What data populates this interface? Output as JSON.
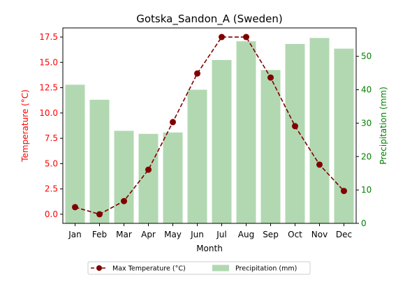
{
  "chart_data": {
    "type": "bar+line",
    "title": "Gotska_Sandon_A (Sweden)",
    "xlabel": "Month",
    "categories": [
      "Jan",
      "Feb",
      "Mar",
      "Apr",
      "May",
      "Jun",
      "Jul",
      "Aug",
      "Sep",
      "Oct",
      "Nov",
      "Dec"
    ],
    "left_axis": {
      "label": "Temperature (°C)",
      "color": "#ff0000",
      "ylim": [
        -0.9,
        18.4
      ],
      "ticks": [
        0.0,
        2.5,
        5.0,
        7.5,
        10.0,
        12.5,
        15.0,
        17.5
      ],
      "tick_labels": [
        "0.0",
        "2.5",
        "5.0",
        "7.5",
        "10.0",
        "12.5",
        "15.0",
        "17.5"
      ]
    },
    "right_axis": {
      "label": "Precipitation (mm)",
      "color": "#008000",
      "ylim": [
        0,
        58.5
      ],
      "ticks": [
        0,
        10,
        20,
        30,
        40,
        50
      ],
      "tick_labels": [
        "0",
        "10",
        "20",
        "30",
        "40",
        "50"
      ]
    },
    "series": [
      {
        "name": "Max Temperature (°C)",
        "kind": "line",
        "axis": "left",
        "color": "#800000",
        "line_style": "dashed",
        "marker": "circle",
        "values": [
          0.7,
          0.0,
          1.3,
          4.4,
          9.1,
          13.9,
          17.5,
          17.5,
          13.5,
          8.7,
          4.9,
          2.3
        ]
      },
      {
        "name": "Precipitation (mm)",
        "kind": "bar",
        "axis": "right",
        "color": "#b2d8b2",
        "values": [
          41.5,
          37.0,
          27.7,
          26.8,
          27.2,
          40.0,
          48.9,
          54.5,
          45.9,
          53.7,
          55.5,
          52.3
        ]
      }
    ],
    "legend": {
      "placement": "bottom-center",
      "columns": 2
    },
    "grid": false
  }
}
